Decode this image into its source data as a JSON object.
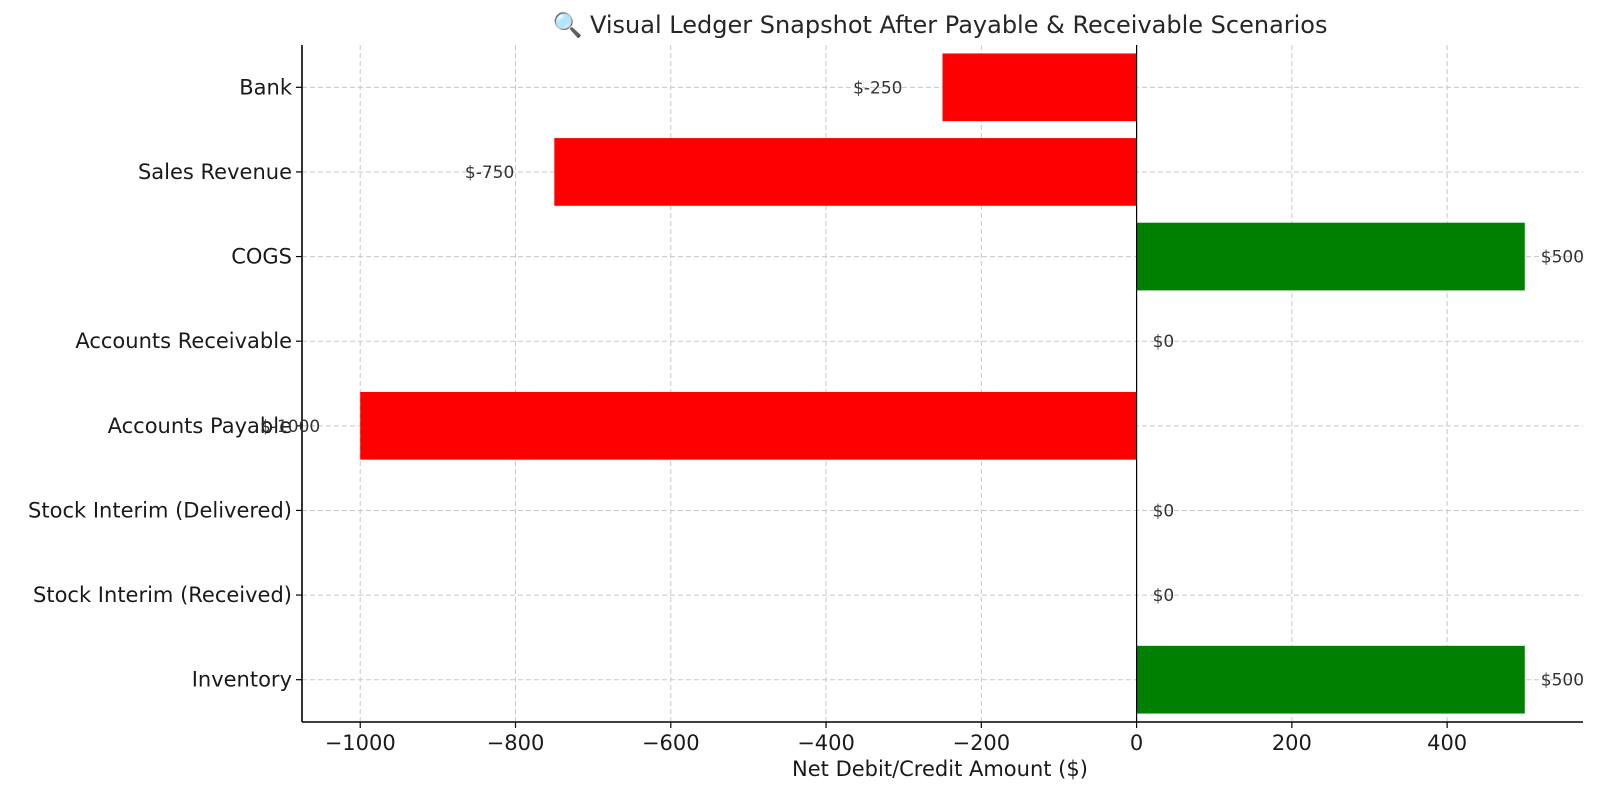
{
  "chart_data": {
    "type": "bar",
    "orientation": "horizontal",
    "title": "🔍 Visual Ledger Snapshot After Payable & Receivable Scenarios",
    "xlabel": "Net Debit/Credit Amount ($)",
    "ylabel": "",
    "categories": [
      "Inventory",
      "Stock Interim (Received)",
      "Stock Interim (Delivered)",
      "Accounts Payable",
      "Accounts Receivable",
      "COGS",
      "Sales Revenue",
      "Bank"
    ],
    "values": [
      500,
      0,
      0,
      -1000,
      0,
      500,
      -750,
      -250
    ],
    "data_labels": [
      "$500",
      "$0",
      "$0",
      "$-1000",
      "$0",
      "$500",
      "$-750",
      "$-250"
    ],
    "xlim": [
      -1075,
      575
    ],
    "xticks": [
      -1000,
      -800,
      -600,
      -400,
      -200,
      0,
      200,
      400
    ],
    "xtick_labels": [
      "−1000",
      "−800",
      "−600",
      "−400",
      "−200",
      "0",
      "200",
      "400"
    ],
    "grid": true,
    "colors": {
      "positive": "#008000",
      "negative": "#ff0000"
    }
  }
}
